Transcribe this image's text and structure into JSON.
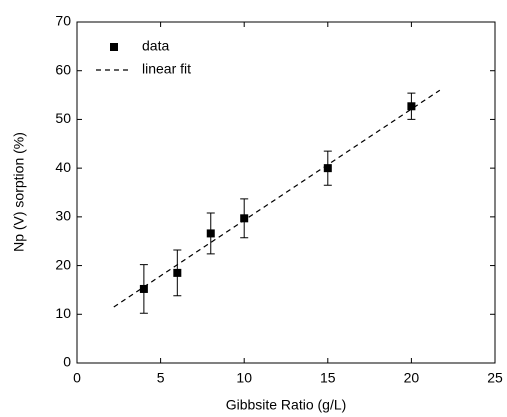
{
  "chart_data": {
    "type": "scatter",
    "x_label": "Gibbsite Ratio (g/L)",
    "y_label": "Np (V) sorption (%)",
    "xlim": [
      0,
      25
    ],
    "xticks": [
      0,
      5,
      10,
      15,
      20,
      25
    ],
    "ylim": [
      0,
      70
    ],
    "yticks": [
      0,
      10,
      20,
      30,
      40,
      50,
      60,
      70
    ],
    "legend": "upper-left",
    "series": [
      {
        "name": "data",
        "color": "#000000",
        "marker": "square",
        "x": [
          4,
          6,
          8,
          10,
          15,
          20
        ],
        "values": [
          15.2,
          18.5,
          26.6,
          29.7,
          40,
          52.7
        ],
        "errors": [
          5,
          4.7,
          4.2,
          4,
          3.5,
          2.7
        ]
      },
      {
        "name": "linear fit",
        "color": "#000000",
        "line_style": "dashed",
        "x": [
          2.2,
          21.7
        ],
        "values": [
          11.5,
          56
        ]
      }
    ]
  }
}
